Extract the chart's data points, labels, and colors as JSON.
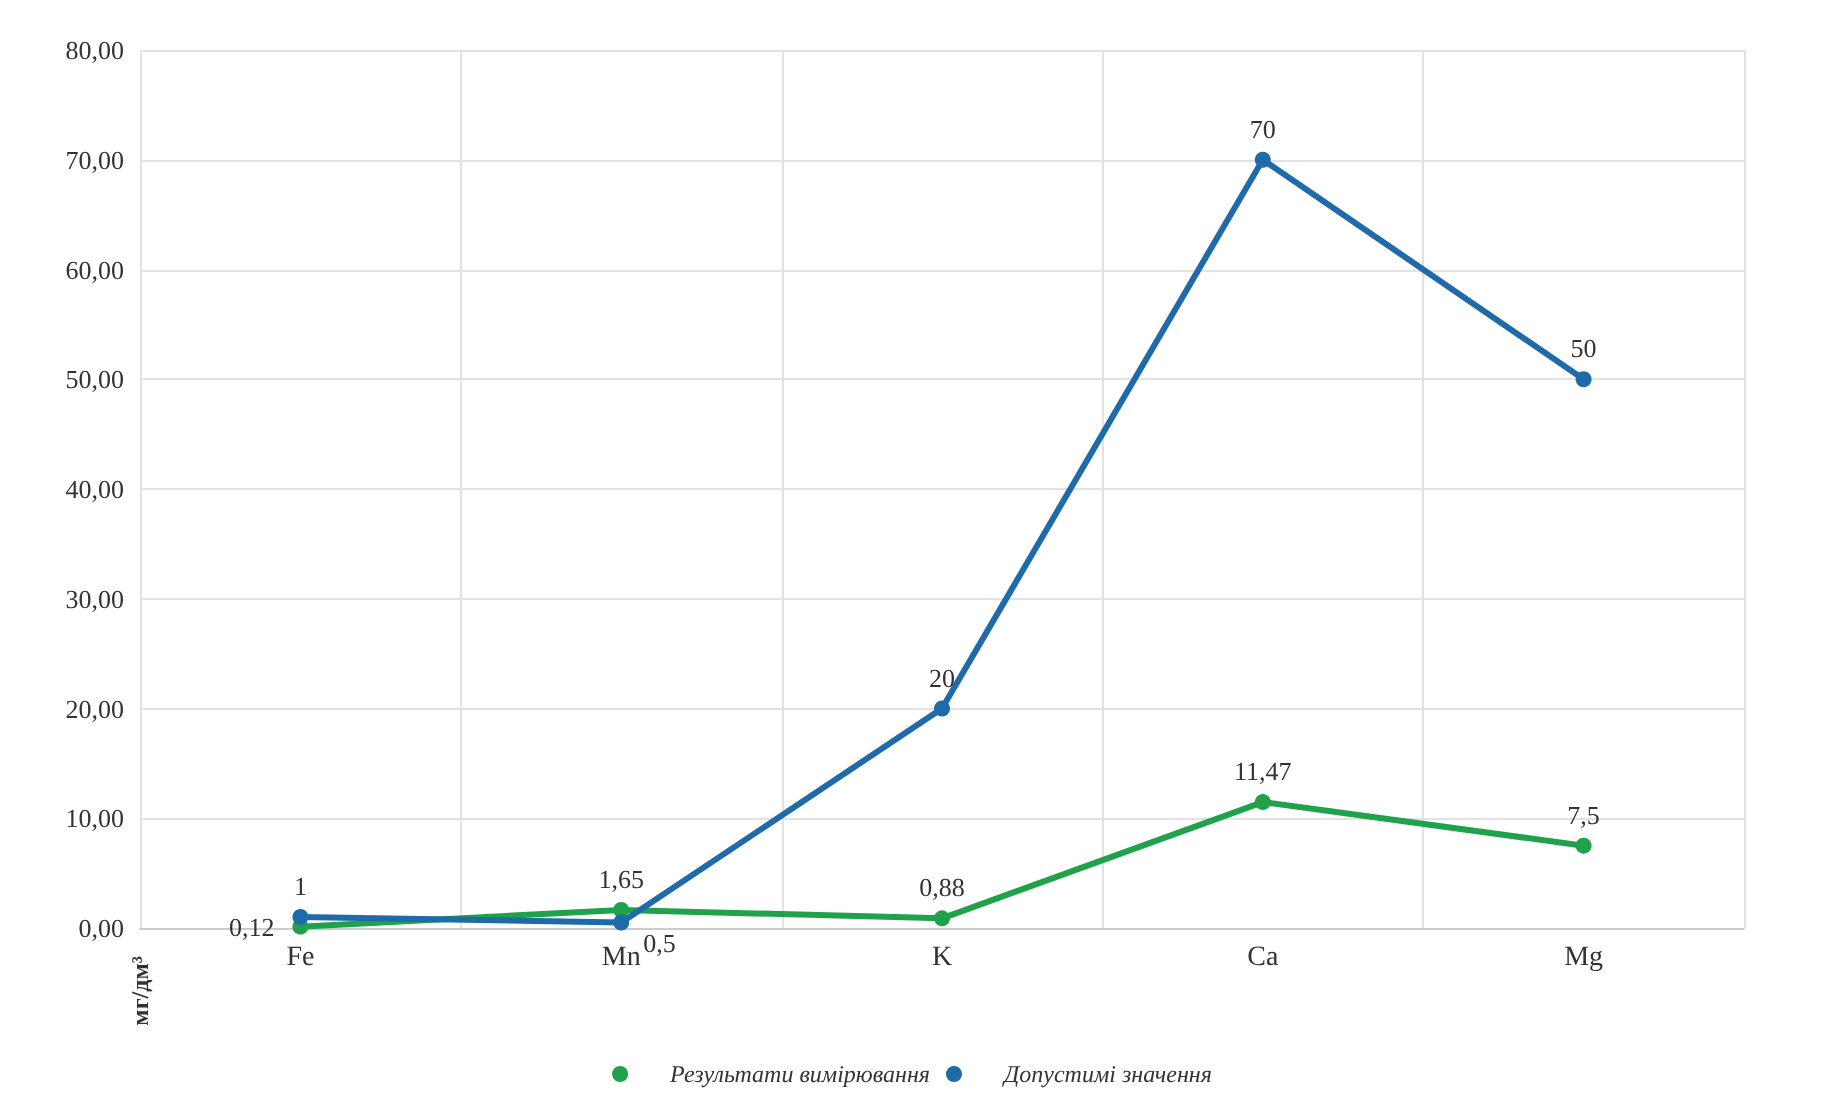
{
  "chart_data": {
    "type": "line",
    "ylabel": "мг/дм³",
    "categories": [
      "Fe",
      "Mn",
      "K",
      "Ca",
      "Mg"
    ],
    "series": [
      {
        "name": "Результати вимірювання",
        "color": "#1fa24a",
        "values": [
          0.12,
          1.65,
          0.88,
          11.47,
          7.5
        ],
        "value_labels": [
          "0,12",
          "1,65",
          "0,88",
          "11,47",
          "7,5"
        ]
      },
      {
        "name": "Допустимі значення",
        "color": "#1f6aa8",
        "values": [
          1,
          0.5,
          20,
          70,
          50
        ],
        "value_labels": [
          "1",
          "0,5",
          "20",
          "70",
          "50"
        ]
      }
    ],
    "ylim": [
      0,
      80
    ],
    "yticks": [
      {
        "value": 0,
        "label": "0,00"
      },
      {
        "value": 10,
        "label": "10,00"
      },
      {
        "value": 20,
        "label": "20,00"
      },
      {
        "value": 30,
        "label": "30,00"
      },
      {
        "value": 40,
        "label": "40,00"
      },
      {
        "value": 50,
        "label": "50,00"
      },
      {
        "value": 60,
        "label": "60,00"
      },
      {
        "value": 70,
        "label": "70,00"
      },
      {
        "value": 80,
        "label": "80,00"
      }
    ],
    "grid": true,
    "legend": "bottom",
    "marker": "circle",
    "line_style": "solid"
  }
}
